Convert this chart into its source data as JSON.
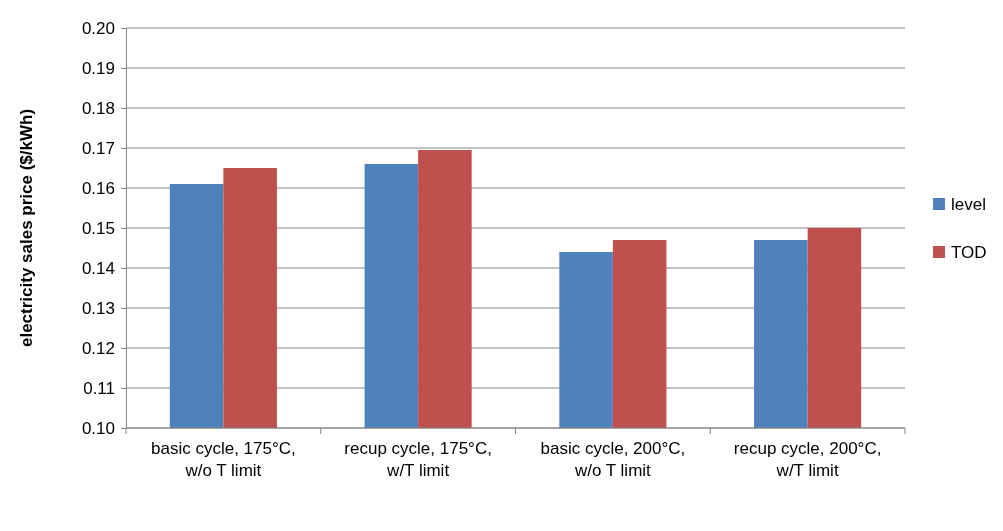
{
  "chart_data": {
    "type": "bar",
    "ylabel": "electricity sales price ($/kWh)",
    "categories": [
      "basic cycle, 175°C, w/o T limit",
      "recup cycle, 175°C, w/T limit",
      "basic cycle, 200°C, w/o T limit",
      "recup cycle, 200°C, w/T limit"
    ],
    "series": [
      {
        "name": "level",
        "color": "#4f81bd",
        "values": [
          0.161,
          0.166,
          0.144,
          0.147
        ]
      },
      {
        "name": "TOD",
        "color": "#c0504d",
        "values": [
          0.165,
          0.1695,
          0.147,
          0.15
        ]
      }
    ],
    "ylim": [
      0.1,
      0.2
    ],
    "yticks": [
      {
        "value": 0.1,
        "label": "0.10"
      },
      {
        "value": 0.11,
        "label": "0.11"
      },
      {
        "value": 0.12,
        "label": "0.12"
      },
      {
        "value": 0.13,
        "label": "0.13"
      },
      {
        "value": 0.14,
        "label": "0.14"
      },
      {
        "value": 0.15,
        "label": "0.15"
      },
      {
        "value": 0.16,
        "label": "0.16"
      },
      {
        "value": 0.17,
        "label": "0.17"
      },
      {
        "value": 0.18,
        "label": "0.18"
      },
      {
        "value": 0.19,
        "label": "0.19"
      },
      {
        "value": 0.2,
        "label": "0.20"
      }
    ],
    "grid": "y",
    "legend": "right"
  }
}
